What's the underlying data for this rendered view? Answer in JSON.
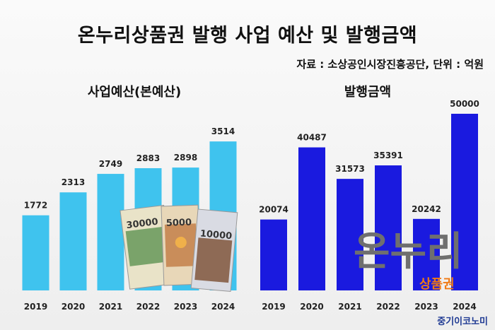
{
  "title": "온누리상품권 발행 사업 예산 및 발행금액",
  "source": "자료 : 소상공인시장진흥공단, 단위 : 억원",
  "brand": "중기이코노미",
  "logo": {
    "main": "온누리",
    "sub": "상품권"
  },
  "voucher_image": {
    "denominations": [
      "30000",
      "5000",
      "10000"
    ]
  },
  "chart_data": [
    {
      "type": "bar",
      "title": "사업예산(본예산)",
      "categories": [
        "2019",
        "2020",
        "2021",
        "2022",
        "2023",
        "2024"
      ],
      "values": [
        1772,
        2313,
        2749,
        2883,
        2898,
        3514
      ],
      "ylim": [
        0,
        4100
      ],
      "color": "#3fc3ee",
      "grid": false,
      "legend": "none"
    },
    {
      "type": "bar",
      "title": "발행금액",
      "categories": [
        "2019",
        "2020",
        "2021",
        "2022",
        "2023",
        "2024"
      ],
      "values": [
        20074,
        40487,
        31573,
        35391,
        20242,
        50000
      ],
      "ylim": [
        0,
        56000
      ],
      "color": "#1a1adf",
      "grid": false,
      "legend": "none"
    }
  ]
}
